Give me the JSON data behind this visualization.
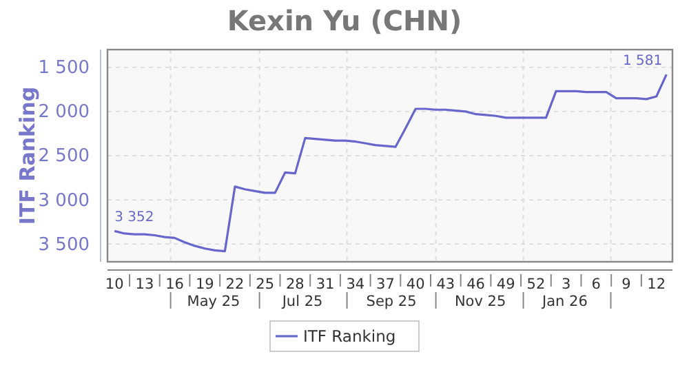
{
  "chart_data": {
    "type": "line",
    "title": "Kexin Yu (CHN)",
    "ylabel": "ITF Ranking",
    "categories": [
      "10",
      null,
      null,
      "13",
      null,
      null,
      "16",
      null,
      null,
      "19",
      null,
      null,
      "22",
      null,
      null,
      "25",
      null,
      null,
      "28",
      null,
      null,
      "31",
      null,
      null,
      "34",
      null,
      null,
      "37",
      null,
      null,
      "40",
      null,
      null,
      "43",
      null,
      null,
      "46",
      null,
      null,
      "49",
      null,
      null,
      "52",
      null,
      null,
      "3",
      null,
      null,
      "6",
      null,
      null,
      "9",
      null,
      null,
      "12",
      null
    ],
    "series": [
      {
        "name": "ITF Ranking",
        "color": "#6666cc",
        "values": [
          3352,
          3380,
          3390,
          3390,
          3400,
          3420,
          3430,
          3480,
          3520,
          3550,
          3570,
          3580,
          2850,
          2880,
          2900,
          2920,
          2920,
          2690,
          2700,
          2300,
          2310,
          2320,
          2330,
          2330,
          2340,
          2360,
          2380,
          2390,
          2400,
          2190,
          1970,
          1970,
          1980,
          1980,
          1990,
          2000,
          2030,
          2040,
          2050,
          2070,
          2070,
          2070,
          2070,
          2070,
          1770,
          1770,
          1770,
          1780,
          1780,
          1780,
          1850,
          1850,
          1850,
          1860,
          1830,
          1581
        ],
        "value_labels": [
          "3 352",
          null,
          null,
          null,
          null,
          null,
          null,
          null,
          null,
          null,
          null,
          null,
          null,
          null,
          null,
          null,
          null,
          null,
          null,
          null,
          null,
          null,
          null,
          null,
          null,
          null,
          null,
          null,
          null,
          null,
          null,
          null,
          null,
          null,
          null,
          null,
          null,
          null,
          null,
          null,
          null,
          null,
          null,
          null,
          null,
          null,
          null,
          null,
          null,
          null,
          null,
          null,
          null,
          null,
          null,
          "1 581"
        ]
      }
    ],
    "x2lim": [
      "2025-02-26",
      "2026-03-27"
    ],
    "x2ticks": [
      {
        "value": "2025-04-11",
        "label": null
      },
      {
        "value": "2025-05-11",
        "label": "May 25"
      },
      {
        "value": "2025-06-12",
        "label": null
      },
      {
        "value": "2025-07-12",
        "label": "Jul 25"
      },
      {
        "value": "2025-08-12",
        "label": null
      },
      {
        "value": "2025-09-12",
        "label": "Sep 25"
      },
      {
        "value": "2025-10-13",
        "label": null
      },
      {
        "value": "2025-11-13",
        "label": "Nov 25"
      },
      {
        "value": "2025-12-13",
        "label": null
      },
      {
        "value": "2026-01-11",
        "label": "Jan 26"
      },
      {
        "value": "2026-02-12",
        "label": null
      }
    ],
    "ylim": [
      3700,
      1300
    ],
    "yticks": [
      {
        "value": 1500,
        "label": "1 500"
      },
      {
        "value": 2000,
        "label": "2 000"
      },
      {
        "value": 2500,
        "label": "2 500"
      },
      {
        "value": 3000,
        "label": "3 000"
      },
      {
        "value": 3500,
        "label": "3 500"
      }
    ],
    "grid": true,
    "legend": "bottom",
    "marker": "none",
    "line_style": "solid"
  }
}
